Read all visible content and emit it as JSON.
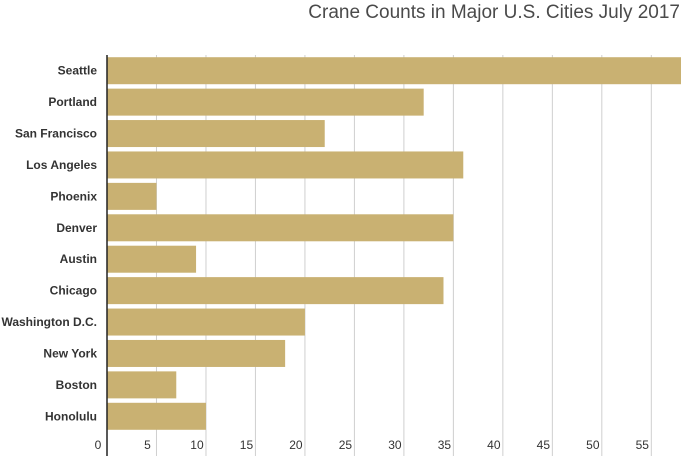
{
  "chart_data": {
    "type": "bar",
    "orientation": "horizontal",
    "title": "Crane Counts in Major U.S. Cities July 2017",
    "categories": [
      "Seattle",
      "Portland",
      "San Francisco",
      "Los Angeles",
      "Phoenix",
      "Denver",
      "Austin",
      "Chicago",
      "Washington D.C.",
      "New York",
      "Boston",
      "Honolulu"
    ],
    "values": [
      58,
      32,
      22,
      36,
      5,
      35,
      9,
      34,
      20,
      18,
      7,
      10
    ],
    "xlim": [
      0,
      58
    ],
    "xticks": [
      0,
      5,
      10,
      15,
      20,
      25,
      30,
      35,
      40,
      45,
      50,
      55
    ],
    "xlabel": "",
    "ylabel": "",
    "grid": true,
    "colors": {
      "bar": "#c9b172",
      "grid": "#cfcfcf",
      "axis": "#222222"
    }
  }
}
